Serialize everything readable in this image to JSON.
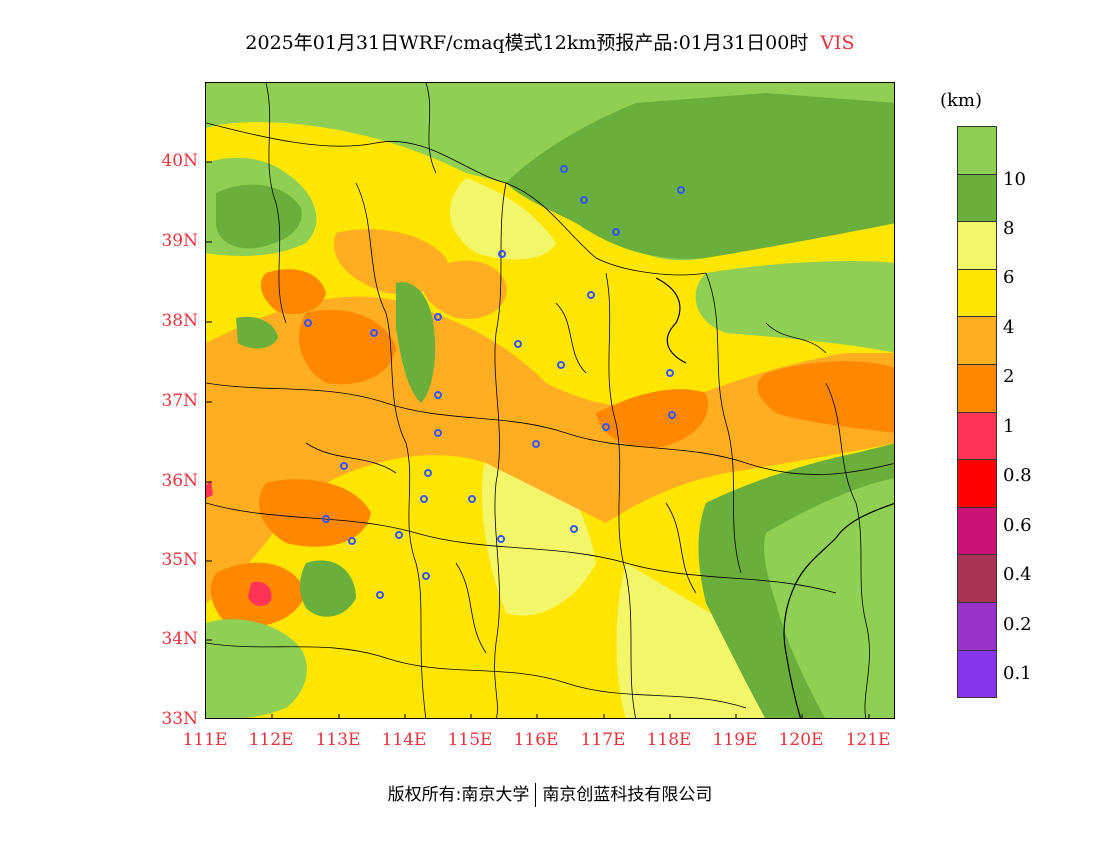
{
  "title": {
    "main": "2025年01月31日WRF/cmaq模式12km预报产品:01月31日00时",
    "variable": "VIS"
  },
  "footer": {
    "left": "版权所有:南京大学",
    "right": "南京创蓝科技有限公司"
  },
  "y_axis": [
    "40N",
    "39N",
    "38N",
    "37N",
    "36N",
    "35N",
    "34N",
    "33N"
  ],
  "x_axis": [
    "111E",
    "112E",
    "113E",
    "114E",
    "115E",
    "116E",
    "117E",
    "118E",
    "119E",
    "120E",
    "121E"
  ],
  "colorbar": {
    "unit": "(km)",
    "labels": [
      "10",
      "8",
      "6",
      "4",
      "2",
      "1",
      "0.8",
      "0.6",
      "0.4",
      "0.2",
      "0.1"
    ],
    "colors": [
      "#8fcf53",
      "#6aaf3b",
      "#f4f66a",
      "#ffe600",
      "#ffae22",
      "#ff8800",
      "#ff3355",
      "#ff0000",
      "#cc1177",
      "#aa3355",
      "#9933cc",
      "#8833ee"
    ]
  },
  "map": {
    "region": "North China Plain",
    "lon_range": [
      111,
      121.4
    ],
    "lat_range": [
      33,
      41
    ]
  },
  "colors": {
    "axis_labels": "#e8323c",
    "station_markers": "#3355ff"
  }
}
